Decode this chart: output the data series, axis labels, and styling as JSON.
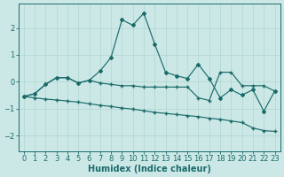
{
  "xlabel": "Humidex (Indice chaleur)",
  "background_color": "#cce8e6",
  "line_color": "#1a6b6b",
  "grid_color": "#b0d4d0",
  "xlim": [
    -0.5,
    23.5
  ],
  "ylim": [
    -2.6,
    2.9
  ],
  "yticks": [
    -2,
    -1,
    0,
    1,
    2
  ],
  "xticks": [
    0,
    1,
    2,
    3,
    4,
    5,
    6,
    7,
    8,
    9,
    10,
    11,
    12,
    13,
    14,
    15,
    16,
    17,
    18,
    19,
    20,
    21,
    22,
    23
  ],
  "curve_x": [
    0,
    1,
    2,
    3,
    4,
    5,
    6,
    7,
    8,
    9,
    10,
    11,
    12,
    13,
    14,
    15,
    16,
    17,
    18,
    19,
    20,
    21,
    22,
    23
  ],
  "curve_y": [
    -0.55,
    -0.45,
    -0.1,
    0.15,
    0.15,
    -0.05,
    0.05,
    0.4,
    0.9,
    2.3,
    2.1,
    2.55,
    1.4,
    0.35,
    0.22,
    0.12,
    0.65,
    0.12,
    -0.6,
    -0.3,
    -0.5,
    -0.3,
    -1.1,
    -0.35
  ],
  "upper_x": [
    0,
    1,
    2,
    3,
    4,
    5,
    6,
    7,
    8,
    9,
    10,
    11,
    12,
    13,
    14,
    15,
    16,
    17,
    18,
    19,
    20,
    21,
    22,
    23
  ],
  "upper_y": [
    -0.55,
    -0.45,
    -0.1,
    0.15,
    0.15,
    -0.05,
    0.05,
    -0.05,
    -0.1,
    -0.15,
    -0.15,
    -0.2,
    -0.2,
    -0.2,
    -0.2,
    -0.2,
    -0.6,
    -0.7,
    0.35,
    0.35,
    -0.15,
    -0.15,
    -0.15,
    -0.35
  ],
  "lower_x": [
    0,
    1,
    2,
    3,
    4,
    5,
    6,
    7,
    8,
    9,
    10,
    11,
    12,
    13,
    14,
    15,
    16,
    17,
    18,
    19,
    20,
    21,
    22,
    23
  ],
  "lower_y": [
    -0.55,
    -0.6,
    -0.65,
    -0.68,
    -0.72,
    -0.76,
    -0.82,
    -0.88,
    -0.92,
    -0.98,
    -1.02,
    -1.08,
    -1.14,
    -1.18,
    -1.22,
    -1.26,
    -1.3,
    -1.36,
    -1.4,
    -1.46,
    -1.52,
    -1.72,
    -1.82,
    -1.85
  ],
  "marker_size": 2.0,
  "line_width": 0.85,
  "font_size_label": 7,
  "font_size_tick": 6
}
